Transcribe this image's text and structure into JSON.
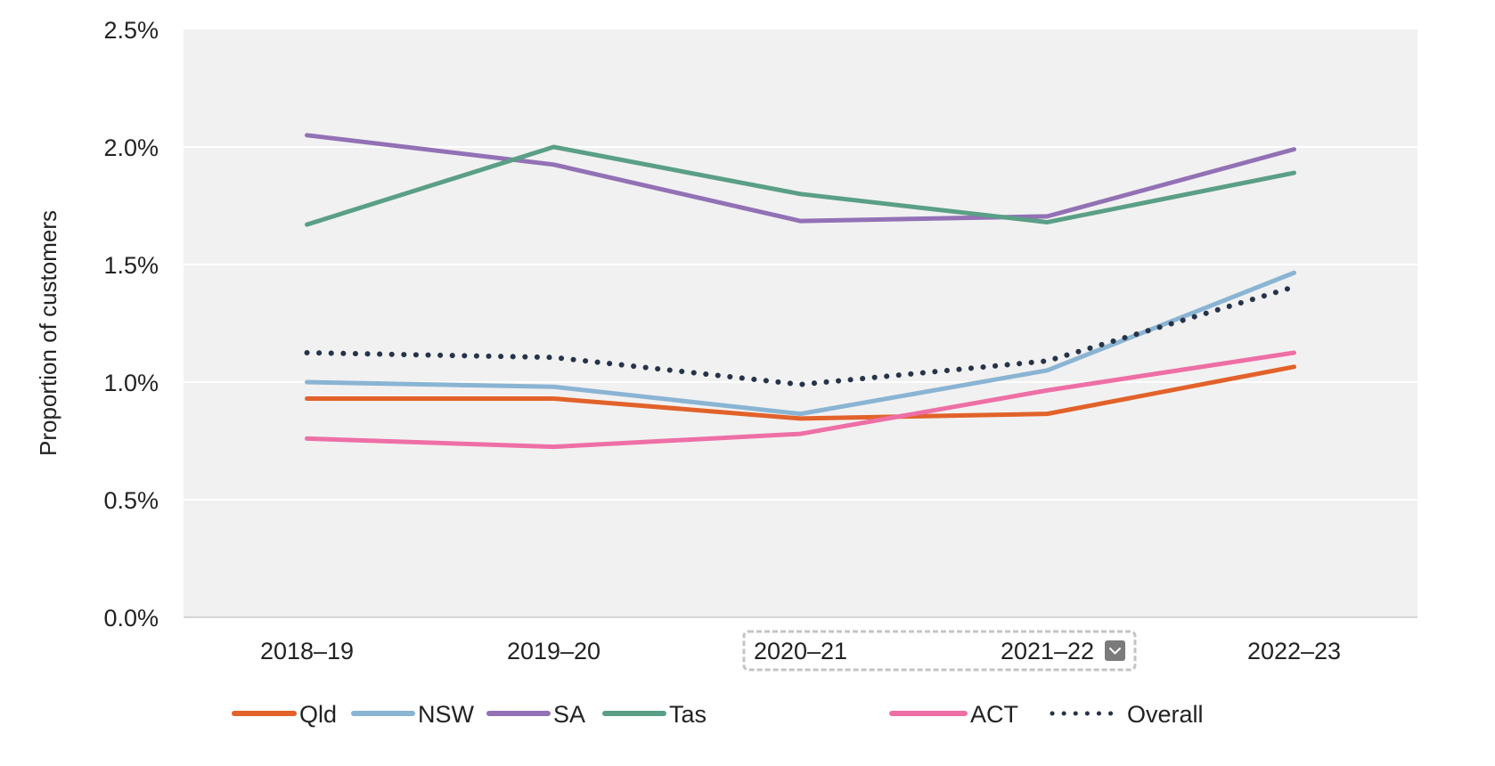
{
  "chart_data": {
    "type": "line",
    "title": "",
    "xlabel": "",
    "ylabel": "Proportion of customers",
    "categories": [
      "2018–19",
      "2019–20",
      "2020–21",
      "2021–22",
      "2022–23"
    ],
    "ylim": [
      0,
      2.5
    ],
    "yticks": [
      0,
      0.5,
      1.0,
      1.5,
      2.0,
      2.5
    ],
    "ytick_labels": [
      "0.0%",
      "0.5%",
      "1.0%",
      "1.5%",
      "2.0%",
      "2.5%"
    ],
    "y_unit": "%",
    "grid": "horizontal",
    "legend_position": "bottom",
    "series": [
      {
        "name": "Qld",
        "color": "#e2622a",
        "style": "solid",
        "values": [
          0.93,
          0.93,
          0.845,
          0.865,
          1.065
        ]
      },
      {
        "name": "NSW",
        "color": "#8ab4d3",
        "style": "solid",
        "values": [
          1.0,
          0.98,
          0.865,
          1.05,
          1.465
        ]
      },
      {
        "name": "SA",
        "color": "#9371b5",
        "style": "solid",
        "values": [
          2.05,
          1.925,
          1.685,
          1.705,
          1.99
        ]
      },
      {
        "name": "Tas",
        "color": "#5a9f86",
        "style": "solid",
        "values": [
          1.67,
          2.0,
          1.8,
          1.68,
          1.89
        ]
      },
      {
        "name": "ACT",
        "color": "#ee6fa6",
        "style": "solid",
        "values": [
          0.76,
          0.725,
          0.78,
          0.965,
          1.125
        ]
      },
      {
        "name": "Overall",
        "color": "#263449",
        "style": "dotted",
        "values": [
          1.125,
          1.105,
          0.99,
          1.09,
          1.405
        ]
      }
    ]
  },
  "ui": {
    "focused_range_label": "2020–21 to 2021–22",
    "dropdown_icon": "chevron-down-icon"
  }
}
